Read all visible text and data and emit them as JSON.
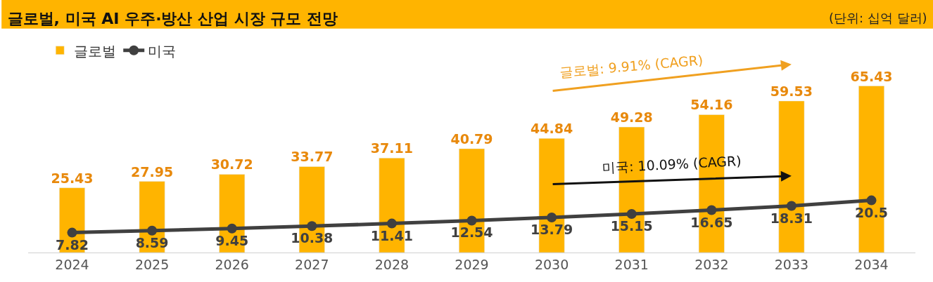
{
  "chart_data": {
    "type": "bar",
    "title": "글로벌, 미국 AI 우주·방산 산업 시장 규모 전망",
    "categories": [
      "2024",
      "2025",
      "2026",
      "2027",
      "2028",
      "2029",
      "2030",
      "2031",
      "2032",
      "2033",
      "2034"
    ],
    "series": [
      {
        "name": "글로벌",
        "color": "#ffb400",
        "values": [
          25.43,
          27.95,
          30.72,
          33.77,
          37.11,
          40.79,
          44.84,
          49.28,
          54.16,
          59.53,
          65.43
        ]
      },
      {
        "name": "미국",
        "type": "line",
        "color": "#404040",
        "marker": "circle",
        "values": [
          7.82,
          8.59,
          9.45,
          10.38,
          11.41,
          12.54,
          13.79,
          15.15,
          16.65,
          18.31,
          20.5
        ]
      }
    ],
    "annotations": [
      "(단위: 십억 달러)",
      "글로벌: 9.91% (CAGR)",
      "미국: 10.09% (CAGR)"
    ],
    "data_labels": true,
    "legend": "top left"
  }
}
